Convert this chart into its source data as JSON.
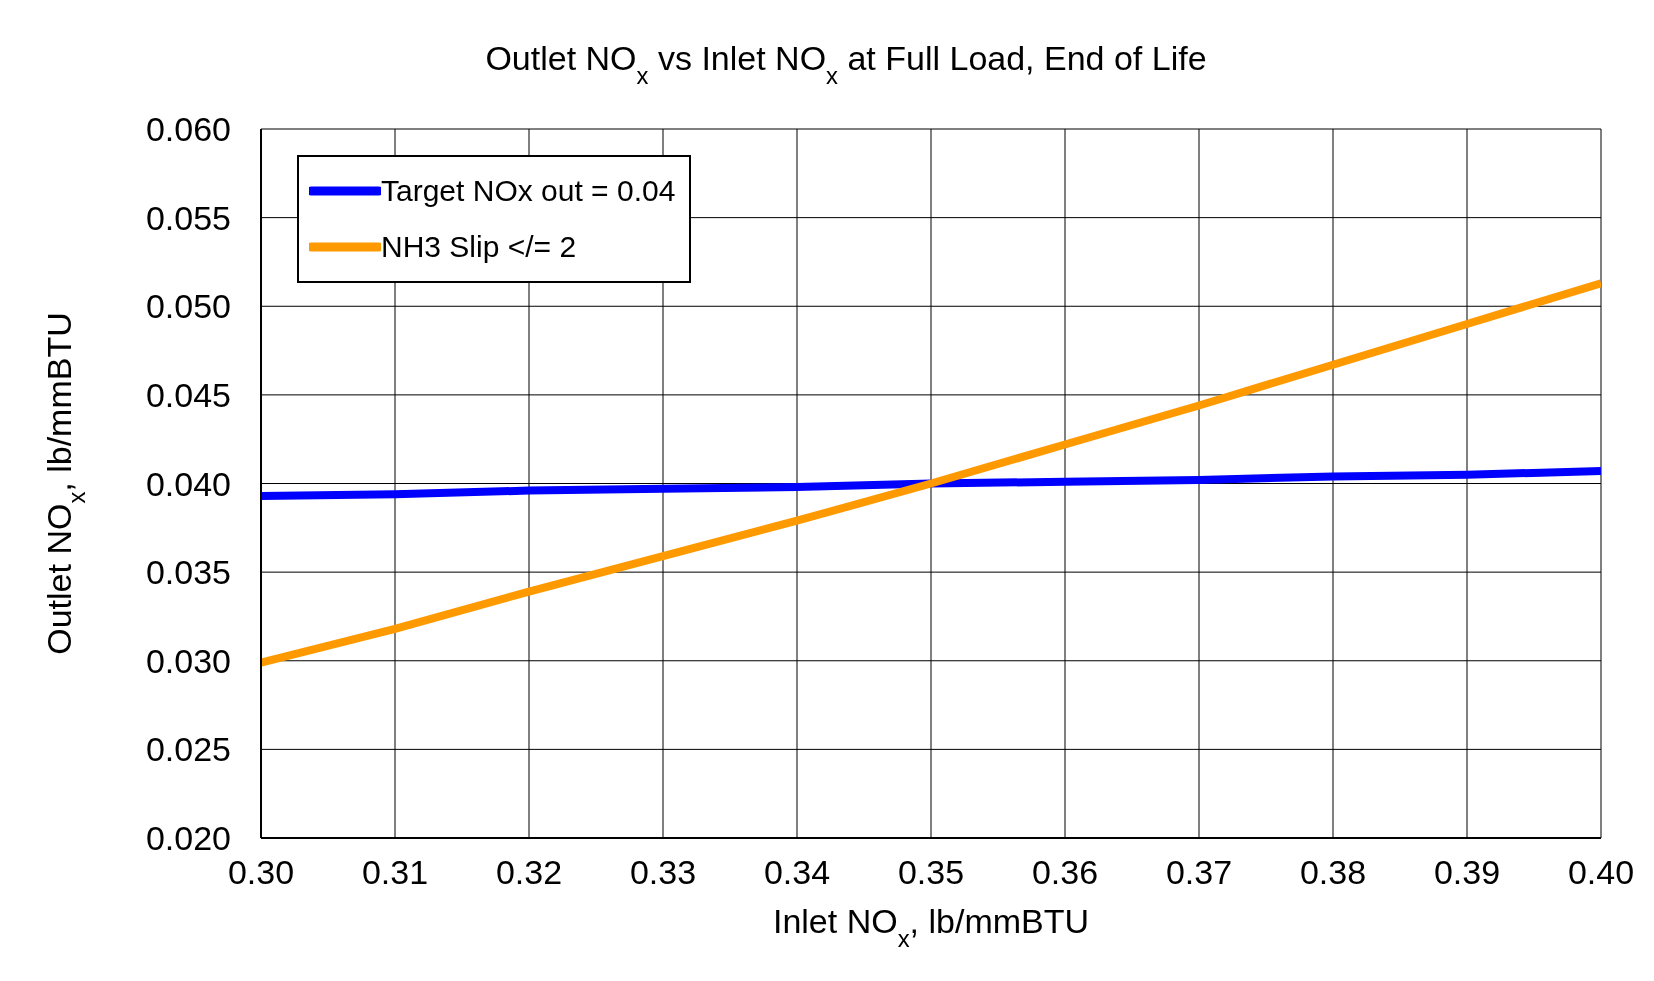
{
  "chart_data": {
    "type": "line",
    "title": "Outlet NO$_{x}$ vs Inlet NO$_{x}$ at Full Load, End of Life",
    "xlabel": "Inlet NO$_{x}$, lb/mmBTU",
    "ylabel": "Outlet NO$_{x}$, lb/mmBTU",
    "x": [
      0.3,
      0.31,
      0.32,
      0.33,
      0.34,
      0.35,
      0.36,
      0.37,
      0.38,
      0.39,
      0.4
    ],
    "series": [
      {
        "name": "Target NOx out = 0.04",
        "color": "#0000ff",
        "values": [
          0.0393,
          0.0394,
          0.0396,
          0.0397,
          0.0398,
          0.04,
          0.0401,
          0.0402,
          0.0404,
          0.0405,
          0.0407
        ]
      },
      {
        "name": "NH3 Slip </= 2",
        "color": "#ff9900",
        "values": [
          0.0299,
          0.0318,
          0.0339,
          0.0359,
          0.0379,
          0.04,
          0.0422,
          0.0444,
          0.0467,
          0.049,
          0.0513
        ]
      }
    ],
    "xlim": [
      0.3,
      0.4
    ],
    "xticks": [
      {
        "value": 0.3,
        "label": "0.30"
      },
      0.31,
      0.32,
      0.33,
      0.34,
      0.35,
      0.36,
      0.37,
      0.38,
      0.39,
      {
        "value": 0.4,
        "label": "0.40"
      }
    ],
    "ylim": [
      0.02,
      0.06
    ],
    "yticks": [
      {
        "value": 0.02,
        "label": "0.020"
      },
      0.025,
      {
        "value": 0.03,
        "label": "0.030"
      },
      0.035,
      {
        "value": 0.04,
        "label": "0.040"
      },
      0.045,
      {
        "value": 0.05,
        "label": "0.050"
      },
      0.055,
      {
        "value": 0.06,
        "label": "0.060"
      }
    ],
    "grid": true,
    "legend": "top left",
    "marker": "none",
    "line_style": "solid"
  }
}
